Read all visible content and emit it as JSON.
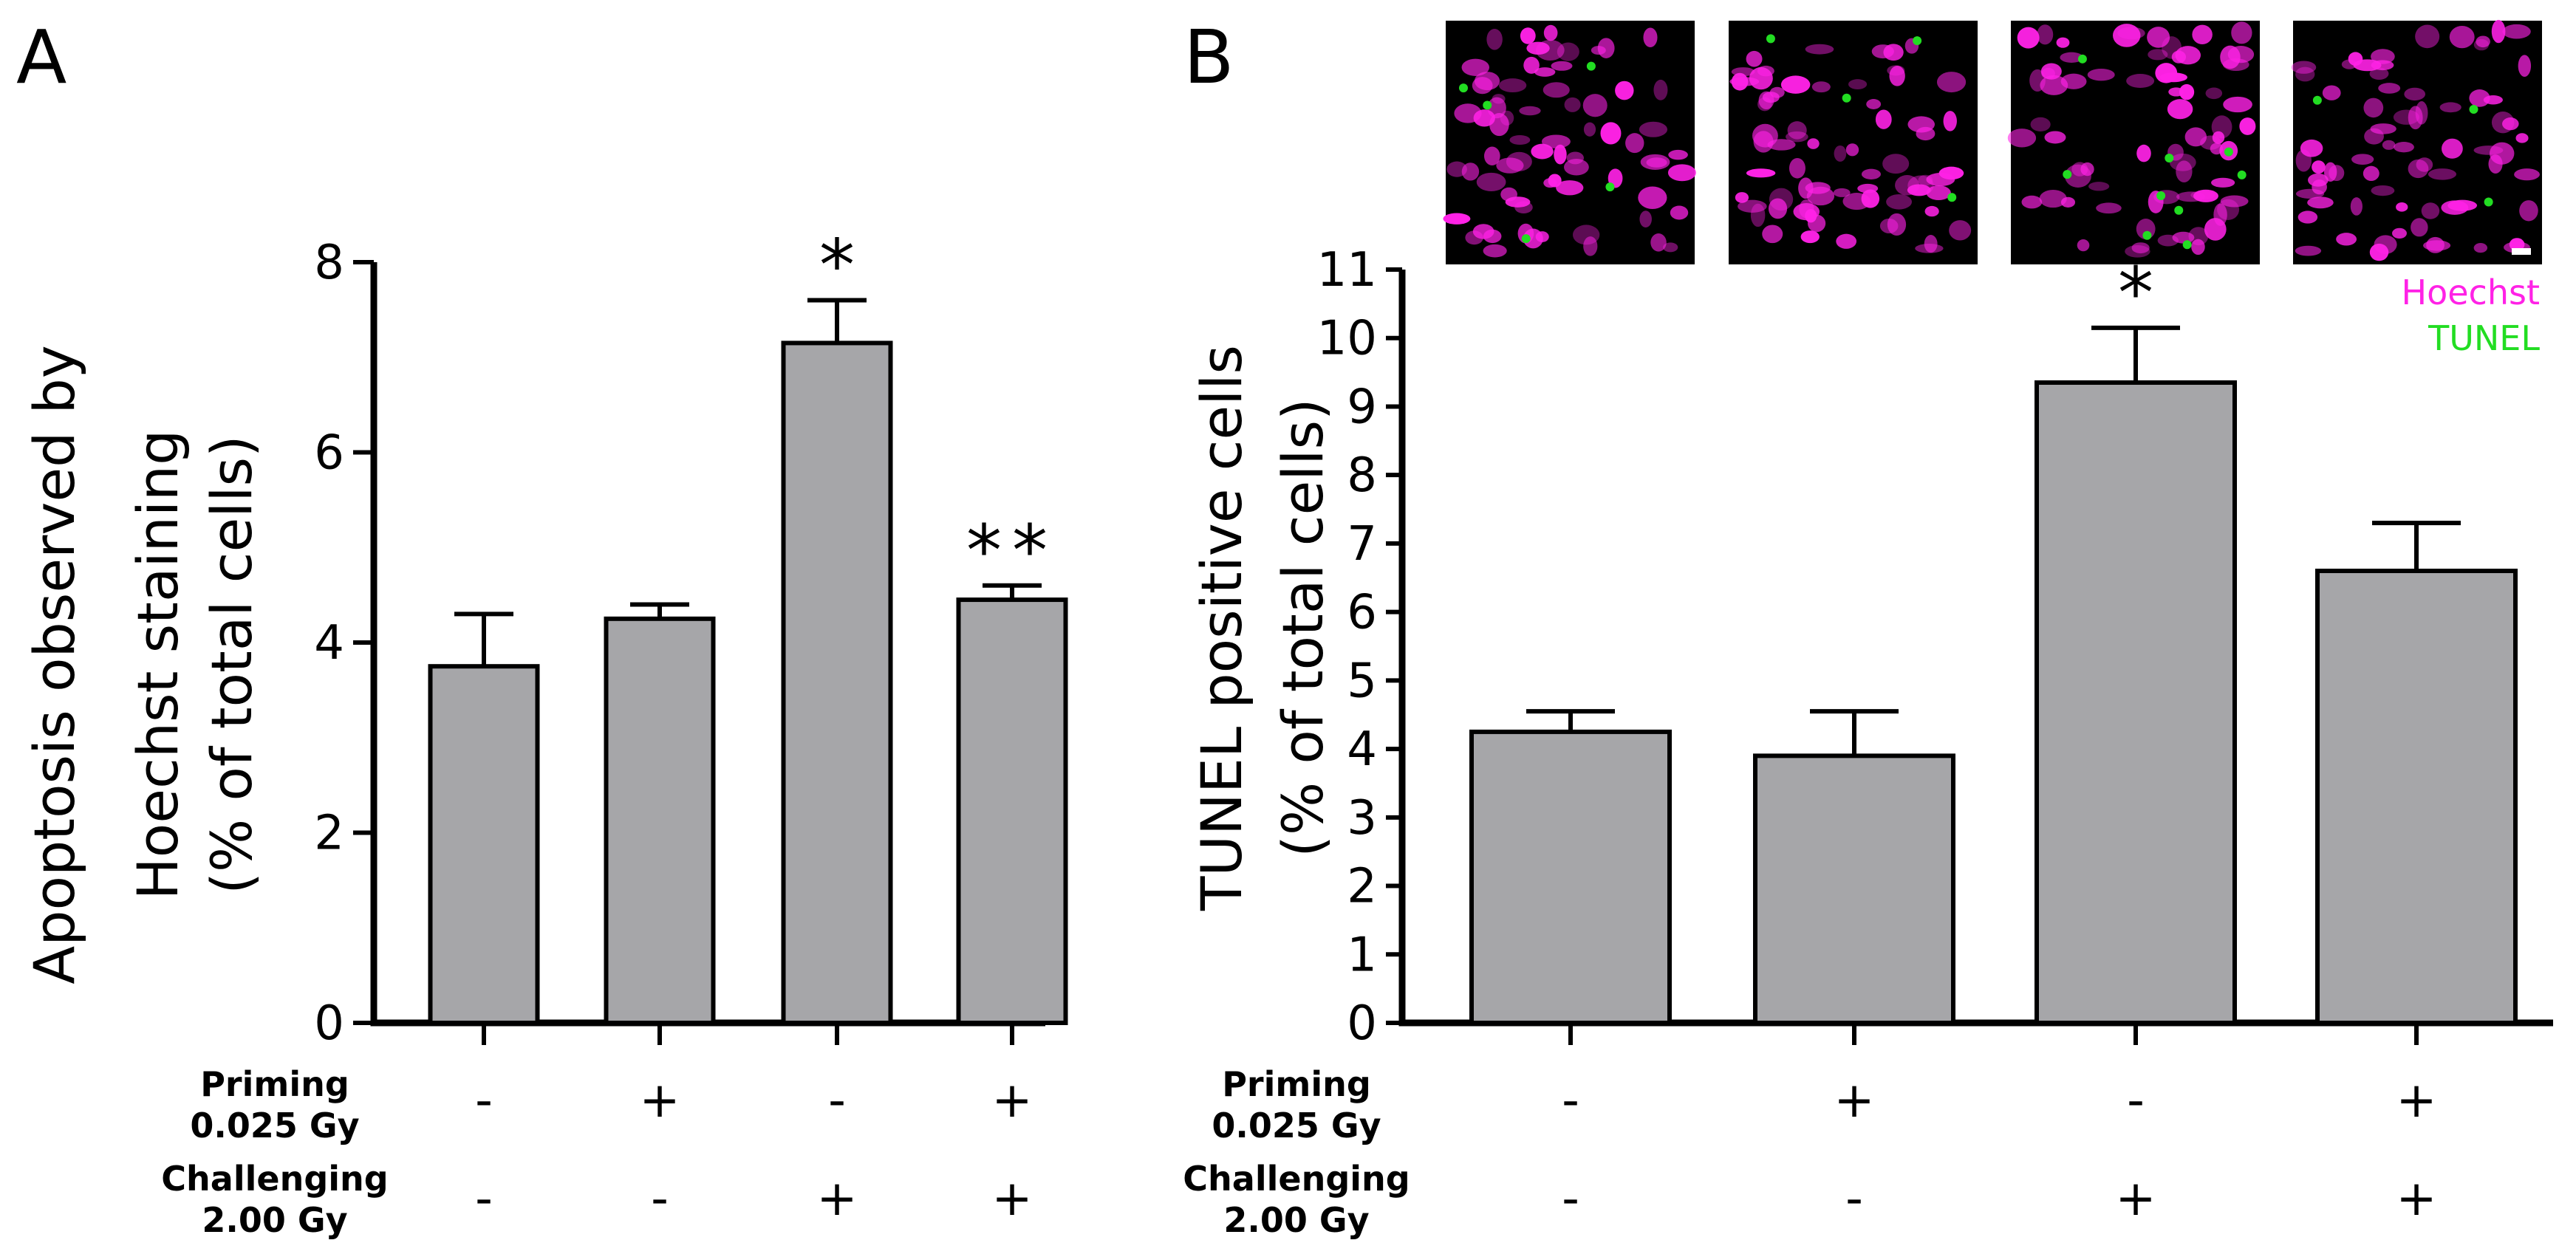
{
  "chart_data": [
    {
      "panel": "A",
      "type": "bar",
      "ylabel_lines": [
        "Apoptosis observed by",
        "Hoechst staining",
        "(% of total cells)"
      ],
      "ylim": [
        0,
        8
      ],
      "yticks": [
        "0",
        "2",
        "4",
        "6",
        "8"
      ],
      "conditions": [
        {
          "priming": "-",
          "challenging": "-"
        },
        {
          "priming": "+",
          "challenging": "-"
        },
        {
          "priming": "-",
          "challenging": "+"
        },
        {
          "priming": "+",
          "challenging": "+"
        }
      ],
      "values": [
        3.75,
        4.25,
        7.15,
        4.45
      ],
      "errors": [
        0.55,
        0.15,
        0.45,
        0.15
      ],
      "significance": [
        "",
        "",
        "*",
        "**"
      ],
      "bar_color": "#a6a6a9"
    },
    {
      "panel": "B",
      "type": "bar",
      "ylabel_lines": [
        "TUNEL positive cells",
        "(% of total cells)"
      ],
      "ylim": [
        0,
        11
      ],
      "yticks": [
        "0",
        "1",
        "2",
        "3",
        "4",
        "5",
        "6",
        "7",
        "8",
        "9",
        "10",
        "11"
      ],
      "conditions": [
        {
          "priming": "-",
          "challenging": "-"
        },
        {
          "priming": "+",
          "challenging": "-"
        },
        {
          "priming": "-",
          "challenging": "+"
        },
        {
          "priming": "+",
          "challenging": "+"
        }
      ],
      "values": [
        4.25,
        3.9,
        9.35,
        6.6
      ],
      "errors": [
        0.3,
        0.65,
        0.8,
        0.7
      ],
      "significance": [
        "",
        "",
        "*",
        ""
      ],
      "bar_color": "#a6a6a9",
      "legend": [
        {
          "label": "Hoechst",
          "color": "#ff22e6"
        },
        {
          "label": "TUNEL",
          "color": "#22dd22"
        }
      ]
    }
  ],
  "row_labels": {
    "priming_line1": "Priming",
    "priming_line2": "0.025 Gy",
    "challenging_line1": "Challenging",
    "challenging_line2": "2.00 Gy"
  },
  "micrograph_colors": {
    "background": "#000000",
    "nuclei": "#ff22e6",
    "tunel": "#22dd22"
  }
}
